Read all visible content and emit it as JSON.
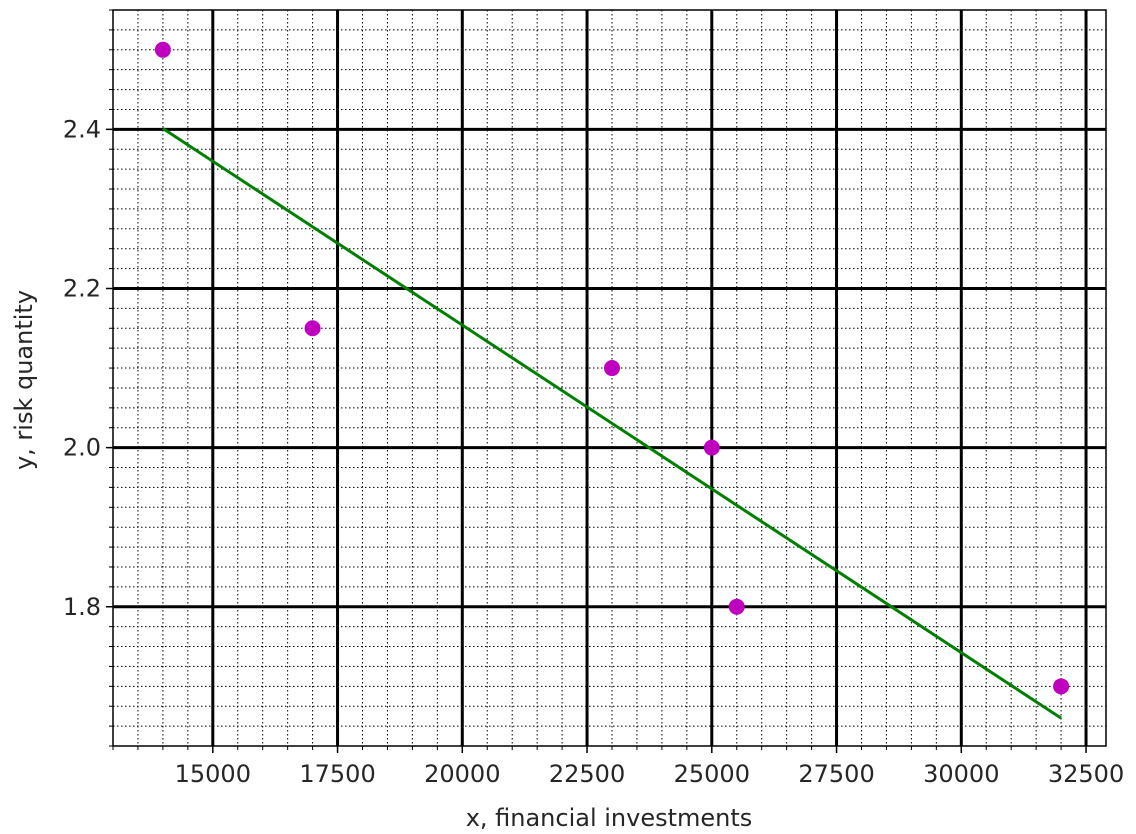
{
  "chart_data": {
    "type": "scatter",
    "xlabel": "x, financial investments",
    "ylabel": "y, risk quantity",
    "xlim": [
      13000,
      32900
    ],
    "ylim": [
      1.625,
      2.55
    ],
    "grid": {
      "major": true,
      "minor": true,
      "major_style": "solid black",
      "minor_style": "dotted"
    },
    "x_ticks": [
      15000,
      17500,
      20000,
      22500,
      25000,
      27500,
      30000,
      32500
    ],
    "x_tick_labels": [
      "15000",
      "17500",
      "20000",
      "22500",
      "25000",
      "27500",
      "30000",
      "32500"
    ],
    "y_ticks": [
      1.8,
      2.0,
      2.2,
      2.4
    ],
    "y_tick_labels": [
      "1.8",
      "2.0",
      "2.2",
      "2.4"
    ],
    "series": [
      {
        "kind": "points",
        "color": "#bf00bf",
        "x": [
          14000,
          17000,
          23000,
          25000,
          25500,
          32000
        ],
        "y": [
          2.5,
          2.15,
          2.1,
          2.0,
          1.8,
          1.7
        ]
      },
      {
        "kind": "line",
        "color": "#008000",
        "x": [
          14000,
          32000
        ],
        "y": [
          2.401,
          1.66
        ]
      }
    ]
  }
}
